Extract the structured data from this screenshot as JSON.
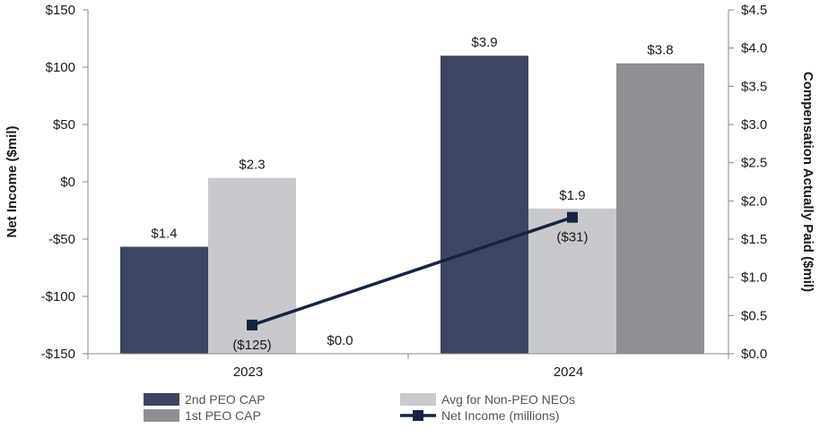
{
  "chart_data": {
    "type": "bar",
    "title": "",
    "categories": [
      "2023",
      "2024"
    ],
    "y_left": {
      "label": "Net Income ($mil)",
      "ylim": [
        -150,
        150
      ],
      "ticks": [
        150,
        100,
        50,
        0,
        -50,
        -100,
        -150
      ],
      "tick_labels": [
        "$150",
        "$100",
        "$50",
        "$0",
        "-$50",
        "-$100",
        "-$150"
      ]
    },
    "y_right": {
      "label": "Compensation Actually Paid ($mil)",
      "ylim": [
        0,
        4.5
      ],
      "ticks": [
        4.5,
        4.0,
        3.5,
        3.0,
        2.5,
        2.0,
        1.5,
        1.0,
        0.5,
        0.0
      ],
      "tick_labels": [
        "$4.5",
        "$4.0",
        "$3.5",
        "$3.0",
        "$2.5",
        "$2.0",
        "$1.5",
        "$1.0",
        "$0.5",
        "$0.0"
      ]
    },
    "series": [
      {
        "name": "2nd PEO CAP",
        "axis": "right",
        "kind": "bar",
        "color": "#3d4660",
        "values": [
          1.4,
          3.9
        ],
        "labels": [
          "$1.4",
          "$3.9"
        ]
      },
      {
        "name": "Avg for Non-PEO NEOs",
        "axis": "right",
        "kind": "bar",
        "color": "#c8c9cc",
        "values": [
          2.3,
          1.9
        ],
        "labels": [
          "$2.3",
          "$1.9"
        ]
      },
      {
        "name": "1st PEO CAP",
        "axis": "right",
        "kind": "bar",
        "color": "#8d8f92",
        "values": [
          0.0,
          3.8
        ],
        "labels": [
          "$0.0",
          "$3.8"
        ]
      },
      {
        "name": "Net Income (millions)",
        "axis": "left",
        "kind": "line",
        "color": "#152440",
        "values": [
          -125,
          -31
        ],
        "labels": [
          "($125)",
          "($31)"
        ]
      }
    ]
  }
}
